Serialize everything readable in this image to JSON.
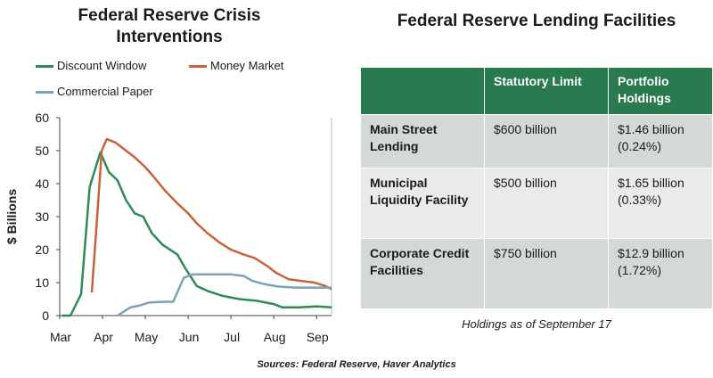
{
  "chart_data": {
    "type": "line",
    "title": "Federal Reserve Crisis Interventions",
    "ylabel": "$ Billions",
    "xlabel": "",
    "ylim": [
      0,
      60
    ],
    "yticks": [
      0,
      10,
      20,
      30,
      40,
      50,
      60
    ],
    "xticks": [
      "Mar",
      "Apr",
      "May",
      "Jun",
      "Jul",
      "Aug",
      "Sep"
    ],
    "x_unit": "months from start of March 2020",
    "grid": false,
    "legend_position": "top",
    "series": [
      {
        "name": "Discount Window",
        "color": "#2e8b57",
        "points": [
          [
            0.05,
            0
          ],
          [
            0.25,
            0
          ],
          [
            0.5,
            6.5
          ],
          [
            0.7,
            39
          ],
          [
            0.95,
            49.5
          ],
          [
            1.15,
            43.5
          ],
          [
            1.35,
            41
          ],
          [
            1.55,
            35
          ],
          [
            1.75,
            31
          ],
          [
            1.95,
            30
          ],
          [
            2.15,
            25
          ],
          [
            2.4,
            21.5
          ],
          [
            2.75,
            18.5
          ],
          [
            2.95,
            14
          ],
          [
            3.2,
            9
          ],
          [
            3.45,
            7.5
          ],
          [
            3.8,
            6
          ],
          [
            4.2,
            5
          ],
          [
            4.6,
            4.5
          ],
          [
            5.0,
            3.5
          ],
          [
            5.2,
            2.5
          ],
          [
            5.6,
            2.5
          ],
          [
            6.0,
            2.8
          ],
          [
            6.35,
            2.5
          ]
        ]
      },
      {
        "name": "Money Market",
        "color": "#c8643b",
        "points": [
          [
            0.75,
            7
          ],
          [
            0.88,
            31
          ],
          [
            0.98,
            50
          ],
          [
            1.1,
            53.5
          ],
          [
            1.3,
            52.5
          ],
          [
            1.55,
            50
          ],
          [
            1.75,
            48
          ],
          [
            2.0,
            45
          ],
          [
            2.2,
            42
          ],
          [
            2.45,
            38
          ],
          [
            2.75,
            34
          ],
          [
            3.0,
            31
          ],
          [
            3.2,
            28
          ],
          [
            3.45,
            25
          ],
          [
            3.75,
            22
          ],
          [
            4.0,
            20
          ],
          [
            4.3,
            18.5
          ],
          [
            4.55,
            17.5
          ],
          [
            4.85,
            15
          ],
          [
            5.05,
            13
          ],
          [
            5.35,
            11
          ],
          [
            5.65,
            10.5
          ],
          [
            5.95,
            10
          ],
          [
            6.2,
            9
          ],
          [
            6.35,
            8
          ]
        ]
      },
      {
        "name": "Commercial Paper",
        "color": "#7aa3b8",
        "points": [
          [
            1.35,
            0
          ],
          [
            1.65,
            2.5
          ],
          [
            1.85,
            3
          ],
          [
            2.1,
            4
          ],
          [
            2.45,
            4.2
          ],
          [
            2.65,
            4.2
          ],
          [
            2.9,
            11.5
          ],
          [
            3.1,
            12.5
          ],
          [
            3.5,
            12.5
          ],
          [
            4.0,
            12.5
          ],
          [
            4.3,
            12
          ],
          [
            4.5,
            10.5
          ],
          [
            4.8,
            9.5
          ],
          [
            5.1,
            8.8
          ],
          [
            5.5,
            8.5
          ],
          [
            6.0,
            8.5
          ],
          [
            6.35,
            8.5
          ]
        ]
      }
    ]
  },
  "legend": {
    "items": [
      {
        "label": "Discount Window",
        "color": "#2e8b57"
      },
      {
        "label": "Money Market",
        "color": "#c8643b"
      },
      {
        "label": "Commercial Paper",
        "color": "#7aa3b8"
      }
    ]
  },
  "table": {
    "title": "Federal Reserve Lending Facilities",
    "headers": [
      "",
      "Statutory Limit",
      "Portfolio Holdings"
    ],
    "rows": [
      {
        "name": "Main Street Lending",
        "limit": "$600 billion",
        "holdings": "$1.46 billion (0.24%)"
      },
      {
        "name": "Municipal Liquidity Facility",
        "limit": "$500 billion",
        "holdings": "$1.65 billion (0.33%)"
      },
      {
        "name": "Corporate Credit Facilities",
        "limit": "$750 billion",
        "holdings": "$12.9 billion (1.72%)"
      }
    ],
    "note": "Holdings as of September 17",
    "header_color": "#2a7a4f"
  },
  "sources": "Sources: Federal Reserve, Haver Analytics"
}
